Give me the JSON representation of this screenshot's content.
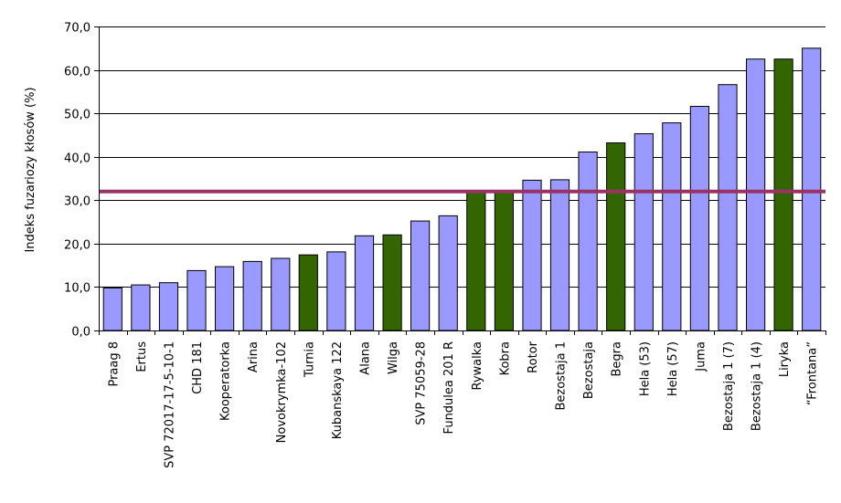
{
  "chart_data": {
    "type": "bar",
    "title": "",
    "xlabel": "",
    "ylabel": "Indeks fuzariozy kłosów (%)",
    "ylim": [
      0,
      70
    ],
    "yticks": [
      "0,0",
      "10,0",
      "20,0",
      "30,0",
      "40,0",
      "50,0",
      "60,0",
      "70,0"
    ],
    "ytick_values": [
      0,
      10,
      20,
      30,
      40,
      50,
      60,
      70
    ],
    "grid": "horizontal",
    "legend": "none",
    "categories": [
      "Praag 8",
      "Ertus",
      "SVP 72017-17-5-10-1",
      "CHD 181",
      "Kooperatorka",
      "Arina",
      "Novokrymka-102",
      "Turnia",
      "Kubanskaya 122",
      "Alana",
      "Wilga",
      "SVP 75059-28",
      "Fundulea 201 R",
      "Rywalka",
      "Kobra",
      "Rotor",
      "Bezostaja 1",
      "Bezostaja",
      "Begra",
      "Hela (53)",
      "Hela (57)",
      "Juma",
      "Bezostaja 1 (7)",
      "Bezostaja 1 (4)",
      "Liryka",
      "“Frontana”"
    ],
    "values": [
      9.8,
      10.5,
      11.0,
      13.8,
      14.7,
      15.9,
      16.6,
      17.4,
      18.1,
      21.8,
      22.0,
      25.2,
      26.4,
      31.8,
      32.2,
      34.6,
      34.7,
      41.1,
      43.2,
      45.3,
      47.8,
      51.6,
      56.6,
      62.5,
      62.5,
      65.0
    ],
    "highlighted": [
      "Turnia",
      "Wilga",
      "Rywalka",
      "Kobra",
      "Begra",
      "Liryka"
    ],
    "reference_line": 32.0,
    "colors": {
      "bar": "#9999ff",
      "bar_highlight": "#336600",
      "reference_line": "#993366",
      "grid": "#000000"
    }
  }
}
